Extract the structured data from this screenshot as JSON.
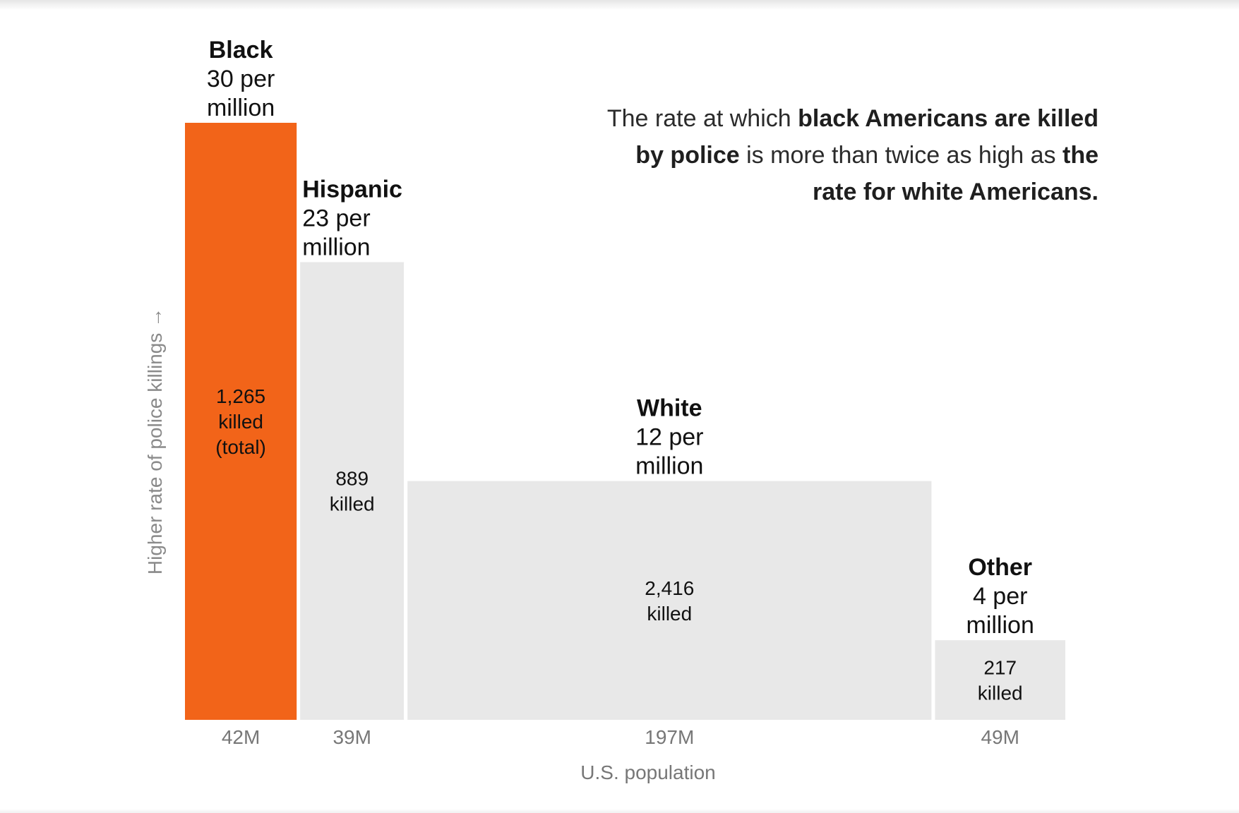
{
  "chart_data": {
    "type": "bar",
    "subtype": "variable-width (marimekko)",
    "title": "",
    "xlabel": "U.S. population",
    "ylabel": "Higher rate of police killings →",
    "categories": [
      "Black",
      "Hispanic",
      "White",
      "Other"
    ],
    "rate_per_million": [
      30,
      23,
      12,
      4
    ],
    "rate_labels": [
      "30 per million",
      "23 per million",
      "12 per million",
      "4 per million"
    ],
    "population_millions": [
      42,
      39,
      197,
      49
    ],
    "population_labels": [
      "42M",
      "39M",
      "197M",
      "49M"
    ],
    "killed": [
      1265,
      889,
      2416,
      217
    ],
    "killed_labels": [
      [
        "1,265",
        "killed",
        "(total)"
      ],
      [
        "889",
        "killed"
      ],
      [
        "2,416",
        "killed"
      ],
      [
        "217",
        "killed"
      ]
    ],
    "ylim": [
      0,
      30
    ],
    "grid": false,
    "legend": "none"
  },
  "annotation": {
    "segments": [
      {
        "text": "The rate at which ",
        "bold": false
      },
      {
        "text": "black Americans are killed by police",
        "bold": true
      },
      {
        "text": " is more than twice as high as ",
        "bold": false
      },
      {
        "text": "the rate for white Americans.",
        "bold": true
      }
    ]
  },
  "colors": {
    "highlight": "#f26419",
    "bar": "#e8e8e8",
    "label": "#111111",
    "muted": "#777777"
  }
}
